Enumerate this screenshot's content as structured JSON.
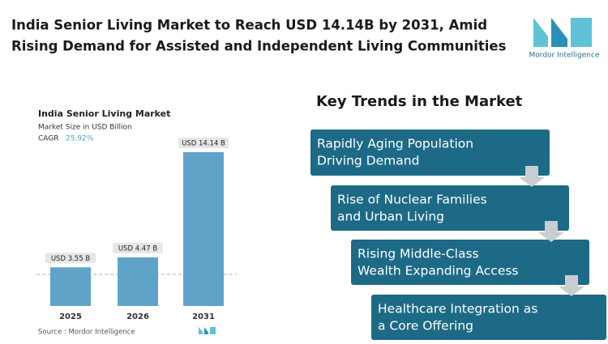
{
  "header": {
    "title_lines": [
      "India Senior Living Market to Reach USD 14.14B by 2031, Amid",
      "Rising Demand for Assisted and Independent Living Communities"
    ],
    "logo_text": "Mordor Intelligence"
  },
  "chart_data": {
    "type": "bar",
    "title": "India Senior Living Market",
    "subtitle": "Market Size in USD Billion",
    "cagr_label": "CAGR",
    "cagr_value": "25.92%",
    "categories": [
      "2025",
      "2026",
      "2031"
    ],
    "values": [
      3.55,
      4.47,
      14.14
    ],
    "value_labels": [
      "USD 3.55 B",
      "USD 4.47 B",
      "USD 14.14 B"
    ],
    "color": "#5fa3c9",
    "source": "Source : Mordor Intelligence"
  },
  "trends": {
    "heading": "Key Trends in the Market",
    "items": [
      {
        "lines": [
          "Rapidly Aging Population",
          "Driving Demand"
        ]
      },
      {
        "lines": [
          "Rise of Nuclear Families",
          "and Urban Living"
        ]
      },
      {
        "lines": [
          "Rising Middle-Class",
          "Wealth Expanding Access"
        ]
      },
      {
        "lines": [
          "Healthcare Integration as",
          "a Core Offering"
        ]
      }
    ]
  }
}
